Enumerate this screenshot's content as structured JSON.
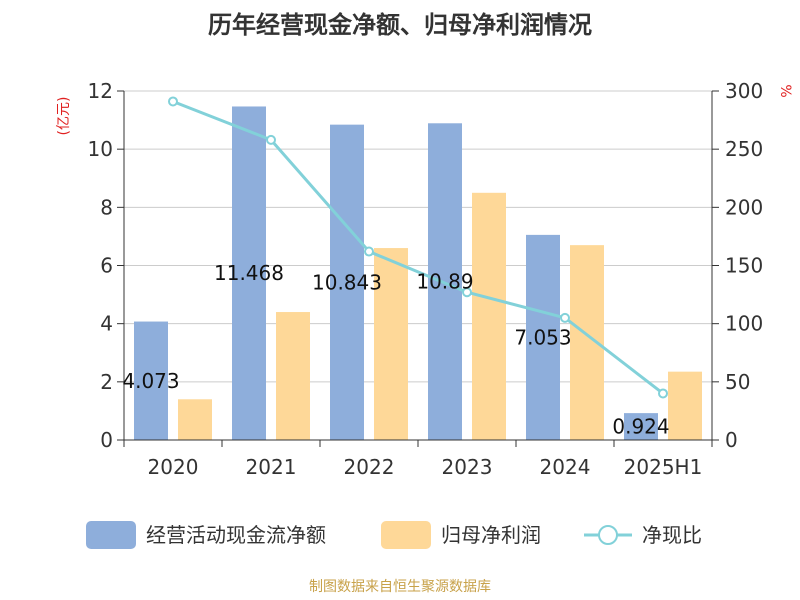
{
  "chart_data": {
    "type": "bar",
    "title": "历年经营现金净额、归母净利润情况",
    "categories": [
      "2020",
      "2021",
      "2022",
      "2023",
      "2024",
      "2025H1"
    ],
    "left_axis": {
      "unit": "(亿元)",
      "ylim": [
        0,
        12
      ],
      "ticks": [
        0,
        2,
        4,
        6,
        8,
        10,
        12
      ]
    },
    "right_axis": {
      "unit": "%",
      "ylim": [
        0,
        300
      ],
      "ticks": [
        0,
        50,
        100,
        150,
        200,
        250,
        300
      ]
    },
    "grid": true,
    "series": [
      {
        "name": "经营活动现金流净额",
        "type": "bar",
        "axis": "left",
        "color": "#8eaedb",
        "values": [
          4.073,
          11.468,
          10.843,
          10.89,
          7.053,
          0.924
        ],
        "labels": [
          "4.073",
          "11.468",
          "10.843",
          "10.89",
          "7.053",
          "0.924"
        ]
      },
      {
        "name": "归母净利润",
        "type": "bar",
        "axis": "left",
        "color": "#fed898",
        "values": [
          1.4,
          4.4,
          6.6,
          8.5,
          6.7,
          2.35
        ]
      },
      {
        "name": "净现比",
        "type": "line",
        "axis": "right",
        "color": "#82d1d9",
        "values": [
          291,
          258,
          162,
          127,
          105,
          40
        ]
      }
    ],
    "legend": {
      "position": "bottom"
    },
    "source": "制图数据来自恒生聚源数据库"
  }
}
